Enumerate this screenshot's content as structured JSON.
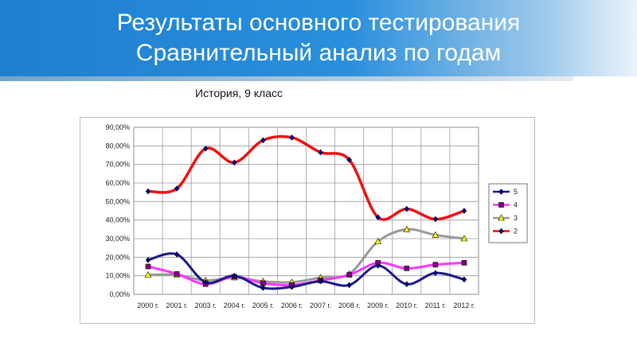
{
  "header": {
    "title_line1": "Результаты основного тестирования",
    "title_line2": "Сравнительный анализ по годам"
  },
  "chart_data": {
    "type": "line",
    "title": "История, 9 класс",
    "categories": [
      "2000 г.",
      "2001 г.",
      "2003 г.",
      "2004 г.",
      "2005 г.",
      "2006 г.",
      "2007 г.",
      "2008 г.",
      "2009 г.",
      "2010 г.",
      "2011 г.",
      "2012 г."
    ],
    "ylim": [
      0,
      90
    ],
    "yticks": [
      "0,00%",
      "10,00%",
      "20,00%",
      "30,00%",
      "40,00%",
      "50,00%",
      "60,00%",
      "70,00%",
      "80,00%",
      "90,00%"
    ],
    "grid": true,
    "legend_position": "right",
    "series": [
      {
        "name": "5",
        "color": "#1a1a8c",
        "marker": "diamond",
        "values": [
          18.5,
          21.5,
          6.5,
          10,
          3.5,
          4,
          7,
          5,
          15.5,
          5.5,
          11.5,
          8
        ]
      },
      {
        "name": "4",
        "color": "#ff33ff",
        "marker": "square",
        "values": [
          15,
          11,
          5.5,
          9.5,
          6,
          5,
          7.5,
          10.5,
          17,
          14,
          16,
          17
        ]
      },
      {
        "name": "3",
        "color": "#999999",
        "marker": "triangle",
        "values": [
          10.5,
          10.5,
          7.5,
          9,
          7,
          6.5,
          9,
          11,
          28.5,
          35,
          32,
          30
        ]
      },
      {
        "name": "2",
        "color": "#ee1111",
        "marker": "diamond",
        "values": [
          55.5,
          57,
          78.5,
          71,
          83,
          84.5,
          76.5,
          72.5,
          41.5,
          46,
          40.5,
          45
        ]
      }
    ]
  }
}
